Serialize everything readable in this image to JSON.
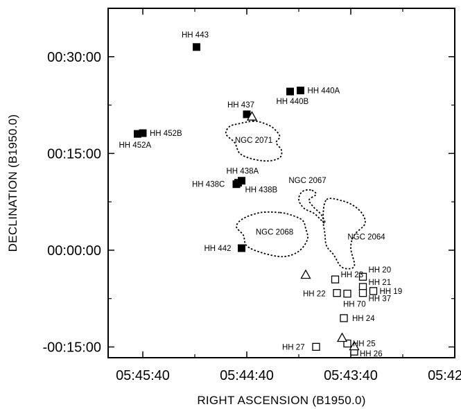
{
  "chart_data": {
    "type": "scatter",
    "title": "",
    "xlabel": "RIGHT ASCENSION (B1950.0)",
    "ylabel": "DECLINATION (B1950.0)",
    "x_unit": "seconds of RA from 05:42:40",
    "y_unit": "arcseconds of Dec",
    "xlim": [
      0,
      200
    ],
    "ylim": [
      -1000,
      2250
    ],
    "x_reversed": true,
    "x_ticks": [
      {
        "value": 180,
        "label": "05:45:40"
      },
      {
        "value": 120,
        "label": "05:44:40"
      },
      {
        "value": 60,
        "label": "05:43:40"
      },
      {
        "value": 0,
        "label": "05:42:40"
      }
    ],
    "y_ticks": [
      {
        "value": 1800,
        "label": "00:30:00"
      },
      {
        "value": 900,
        "label": "00:15:00"
      },
      {
        "value": 0,
        "label": "00:00:00"
      },
      {
        "value": -900,
        "label": "-00:15:00"
      }
    ],
    "series": [
      {
        "marker": "filled-square",
        "points": [
          {
            "label": "HH 443",
            "x": 149,
            "y": 1890
          },
          {
            "label": "HH 440A",
            "x": 89,
            "y": 1486
          },
          {
            "label": "HH 440B",
            "x": 95,
            "y": 1476
          },
          {
            "label": "HH 437",
            "x": 120,
            "y": 1264
          },
          {
            "label": "HH 452B",
            "x": 180,
            "y": 1089
          },
          {
            "label": "HH 452A",
            "x": 183,
            "y": 1082
          },
          {
            "label": "HH 438A",
            "x": 123,
            "y": 646
          },
          {
            "label": "HH 438C",
            "x": 126,
            "y": 614
          },
          {
            "label": "HH 438B",
            "x": 125,
            "y": 627
          },
          {
            "label": "HH 442",
            "x": 123,
            "y": 19
          }
        ]
      },
      {
        "marker": "open-square",
        "points": [
          {
            "label": "HH 23",
            "x": 69,
            "y": -272
          },
          {
            "label": "HH 20",
            "x": 53,
            "y": -247
          },
          {
            "label": "HH 21",
            "x": 53,
            "y": -342
          },
          {
            "label": "HH 22",
            "x": 68,
            "y": -398
          },
          {
            "label": "HH 19",
            "x": 47,
            "y": -380
          },
          {
            "label": "HH 70",
            "x": 62,
            "y": -404
          },
          {
            "label": "HH 37",
            "x": 53,
            "y": -398
          },
          {
            "label": "HH 24",
            "x": 64,
            "y": -632
          },
          {
            "label": "HH 25",
            "x": 62,
            "y": -868
          },
          {
            "label": "HH 27",
            "x": 80,
            "y": -899
          },
          {
            "label": "HH 26",
            "x": 58,
            "y": -943
          }
        ]
      },
      {
        "marker": "open-triangle",
        "points": [
          {
            "x": 117,
            "y": 1244
          },
          {
            "x": 86,
            "y": -228
          },
          {
            "x": 65,
            "y": -815
          },
          {
            "x": 58,
            "y": -893
          }
        ]
      }
    ],
    "regions": [
      {
        "name": "NGC 2071",
        "label_at": {
          "x": 116,
          "y": 1000
        },
        "outline": [
          [
            116,
            1200
          ],
          [
            125,
            1175
          ],
          [
            130,
            1150
          ],
          [
            132,
            1080
          ],
          [
            127,
            1000
          ],
          [
            124,
            900
          ],
          [
            117,
            850
          ],
          [
            108,
            830
          ],
          [
            101,
            860
          ],
          [
            100,
            930
          ],
          [
            103,
            1000
          ],
          [
            101,
            1060
          ],
          [
            105,
            1140
          ],
          [
            110,
            1180
          ]
        ]
      },
      {
        "name": "NGC 2067",
        "label_at": {
          "x": 85,
          "y": 625
        },
        "outline": [
          [
            83,
            560
          ],
          [
            88,
            545
          ],
          [
            90,
            470
          ],
          [
            87,
            390
          ],
          [
            81,
            340
          ],
          [
            75,
            250
          ],
          [
            77,
            330
          ],
          [
            82,
            410
          ],
          [
            84,
            470
          ],
          [
            80,
            520
          ]
        ]
      },
      {
        "name": "NGC 2068",
        "label_at": {
          "x": 104,
          "y": 145
        },
        "outline": [
          [
            101,
            350
          ],
          [
            112,
            350
          ],
          [
            122,
            295
          ],
          [
            126,
            220
          ],
          [
            122,
            140
          ],
          [
            120,
            40
          ],
          [
            111,
            -25
          ],
          [
            99,
            -60
          ],
          [
            90,
            -10
          ],
          [
            85,
            100
          ],
          [
            86,
            200
          ],
          [
            88,
            280
          ],
          [
            95,
            330
          ]
        ]
      },
      {
        "name": "NGC 2064",
        "label_at": {
          "x": 51,
          "y": 100
        },
        "outline": [
          [
            74,
            470
          ],
          [
            65,
            460
          ],
          [
            58,
            410
          ],
          [
            53,
            330
          ],
          [
            52,
            240
          ],
          [
            58,
            140
          ],
          [
            60,
            20
          ],
          [
            58,
            -150
          ],
          [
            65,
            -160
          ],
          [
            70,
            -40
          ],
          [
            74,
            40
          ],
          [
            75,
            160
          ],
          [
            76,
            300
          ]
        ]
      }
    ]
  }
}
